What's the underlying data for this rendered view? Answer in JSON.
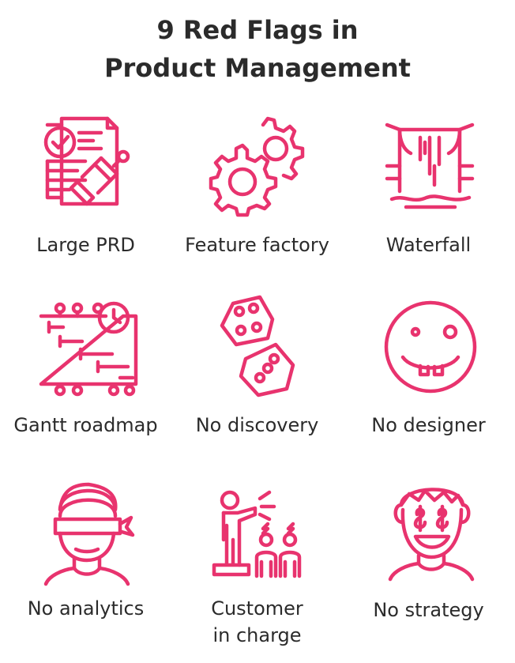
{
  "title": {
    "line1": "9 Red Flags in",
    "line2": "Product Management"
  },
  "colors": {
    "accent": "#e8336e",
    "text": "#2b2b2b"
  },
  "items": [
    {
      "label": "Large PRD",
      "icon": "document-stamp-icon"
    },
    {
      "label": "Feature factory",
      "icon": "gears-icon"
    },
    {
      "label": "Waterfall",
      "icon": "waterfall-icon"
    },
    {
      "label": "Gantt roadmap",
      "icon": "gantt-chart-icon"
    },
    {
      "label": "No discovery",
      "icon": "dice-icon"
    },
    {
      "label": "No designer",
      "icon": "silly-face-icon"
    },
    {
      "label": "No analytics",
      "icon": "blindfolded-person-icon"
    },
    {
      "label_line1": "Customer",
      "label_line2": "in charge",
      "icon": "person-shouting-at-crowd-icon"
    },
    {
      "label": "No strategy",
      "icon": "money-eyes-face-icon"
    }
  ]
}
